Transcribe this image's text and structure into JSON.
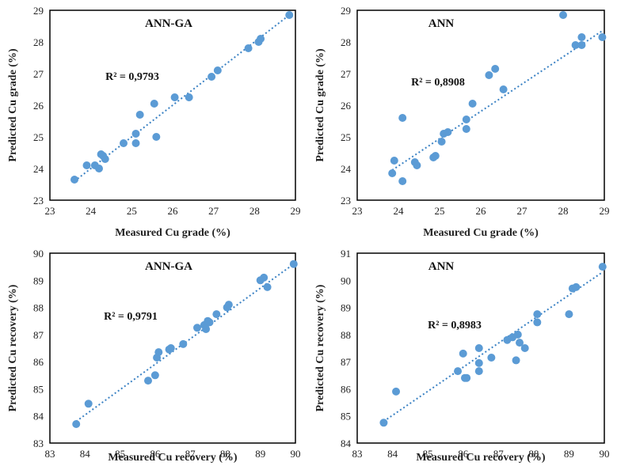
{
  "chart_data": [
    {
      "type": "scatter",
      "title": "ANN-GA",
      "annotation": "R² = 0,9793",
      "xlabel": "Measured Cu grade (%)",
      "ylabel": "Predicted Cu grade (%)",
      "xlim": [
        23,
        29
      ],
      "ylim": [
        23,
        29
      ],
      "xticks": [
        "23",
        "24",
        "25",
        "26",
        "27",
        "28",
        "29"
      ],
      "yticks": [
        "23",
        "24",
        "25",
        "26",
        "27",
        "28",
        "29"
      ],
      "trendline": [
        [
          23.6,
          23.6
        ],
        [
          28.9,
          28.9
        ]
      ],
      "marker_color": "#5b9bd5",
      "trend_color": "#3b82c4",
      "points": [
        [
          23.6,
          23.65
        ],
        [
          23.9,
          24.1
        ],
        [
          24.1,
          24.1
        ],
        [
          24.2,
          24.0
        ],
        [
          24.25,
          24.45
        ],
        [
          24.3,
          24.4
        ],
        [
          24.35,
          24.3
        ],
        [
          24.8,
          24.8
        ],
        [
          25.1,
          24.8
        ],
        [
          25.1,
          25.1
        ],
        [
          25.2,
          25.7
        ],
        [
          25.55,
          26.05
        ],
        [
          25.6,
          25.0
        ],
        [
          26.05,
          26.25
        ],
        [
          26.4,
          26.25
        ],
        [
          26.95,
          26.9
        ],
        [
          27.1,
          27.1
        ],
        [
          27.85,
          27.8
        ],
        [
          28.1,
          28.0
        ],
        [
          28.15,
          28.1
        ],
        [
          28.85,
          28.85
        ]
      ]
    },
    {
      "type": "scatter",
      "title": "ANN",
      "annotation": "R² = 0,8908",
      "xlabel": "Measured Cu grade (%)",
      "ylabel": "Predicted Cu grade (%)",
      "xlim": [
        23,
        29
      ],
      "ylim": [
        23,
        29
      ],
      "xticks": [
        "23",
        "24",
        "25",
        "26",
        "27",
        "28",
        "29"
      ],
      "yticks": [
        "23",
        "24",
        "25",
        "26",
        "27",
        "28",
        "29"
      ],
      "trendline": [
        [
          23.85,
          23.95
        ],
        [
          28.95,
          28.35
        ]
      ],
      "marker_color": "#5b9bd5",
      "trend_color": "#3b82c4",
      "points": [
        [
          23.85,
          23.85
        ],
        [
          23.9,
          24.25
        ],
        [
          24.1,
          23.6
        ],
        [
          24.1,
          25.6
        ],
        [
          24.4,
          24.2
        ],
        [
          24.45,
          24.1
        ],
        [
          24.85,
          24.35
        ],
        [
          24.9,
          24.4
        ],
        [
          25.05,
          24.85
        ],
        [
          25.1,
          25.1
        ],
        [
          25.2,
          25.15
        ],
        [
          25.65,
          25.25
        ],
        [
          25.65,
          25.55
        ],
        [
          25.8,
          26.05
        ],
        [
          26.2,
          26.95
        ],
        [
          26.35,
          27.15
        ],
        [
          26.55,
          26.5
        ],
        [
          28.0,
          28.85
        ],
        [
          28.3,
          27.9
        ],
        [
          28.45,
          27.9
        ],
        [
          28.45,
          28.15
        ],
        [
          28.95,
          28.15
        ]
      ]
    },
    {
      "type": "scatter",
      "title": "ANN-GA",
      "annotation": "R² = 0,9791",
      "xlabel": "Measured Cu recovery (%)",
      "ylabel": "Predicted Cu recovery (%)",
      "xlim": [
        83,
        90
      ],
      "ylim": [
        83,
        90
      ],
      "xticks": [
        "83",
        "84",
        "85",
        "86",
        "87",
        "88",
        "89",
        "90"
      ],
      "yticks": [
        "83",
        "84",
        "85",
        "86",
        "87",
        "88",
        "89",
        "90"
      ],
      "trendline": [
        [
          83.75,
          83.8
        ],
        [
          89.95,
          89.6
        ]
      ],
      "marker_color": "#5b9bd5",
      "trend_color": "#3b82c4",
      "points": [
        [
          83.75,
          83.7
        ],
        [
          84.1,
          84.45
        ],
        [
          85.8,
          85.3
        ],
        [
          86.0,
          85.5
        ],
        [
          86.05,
          86.15
        ],
        [
          86.1,
          86.35
        ],
        [
          86.4,
          86.45
        ],
        [
          86.45,
          86.5
        ],
        [
          86.8,
          86.65
        ],
        [
          87.2,
          87.25
        ],
        [
          87.4,
          87.35
        ],
        [
          87.45,
          87.2
        ],
        [
          87.5,
          87.5
        ],
        [
          87.55,
          87.45
        ],
        [
          87.75,
          87.75
        ],
        [
          88.05,
          88.0
        ],
        [
          88.1,
          88.1
        ],
        [
          89.0,
          89.0
        ],
        [
          89.1,
          89.1
        ],
        [
          89.2,
          88.75
        ],
        [
          89.95,
          89.6
        ]
      ]
    },
    {
      "type": "scatter",
      "title": "ANN",
      "annotation": "R² = 0,8983",
      "xlabel": "Measured Cu recovery (%)",
      "ylabel": "Predicted Cu recovery (%)",
      "xlim": [
        83,
        90
      ],
      "ylim": [
        84,
        91
      ],
      "xticks": [
        "83",
        "84",
        "85",
        "86",
        "87",
        "88",
        "89",
        "90"
      ],
      "yticks": [
        "84",
        "85",
        "86",
        "87",
        "88",
        "89",
        "90",
        "91"
      ],
      "trendline": [
        [
          83.75,
          84.8
        ],
        [
          89.95,
          90.3
        ]
      ],
      "marker_color": "#5b9bd5",
      "trend_color": "#3b82c4",
      "points": [
        [
          83.75,
          84.75
        ],
        [
          84.1,
          85.9
        ],
        [
          85.85,
          86.65
        ],
        [
          86.0,
          87.3
        ],
        [
          86.05,
          86.4
        ],
        [
          86.1,
          86.4
        ],
        [
          86.45,
          86.65
        ],
        [
          86.45,
          86.95
        ],
        [
          86.45,
          87.5
        ],
        [
          86.8,
          87.15
        ],
        [
          87.25,
          87.8
        ],
        [
          87.4,
          87.9
        ],
        [
          87.5,
          87.05
        ],
        [
          87.55,
          88.0
        ],
        [
          87.6,
          87.7
        ],
        [
          87.75,
          87.5
        ],
        [
          88.1,
          88.45
        ],
        [
          88.1,
          88.75
        ],
        [
          89.0,
          88.75
        ],
        [
          89.1,
          89.7
        ],
        [
          89.2,
          89.75
        ],
        [
          89.95,
          90.5
        ]
      ]
    }
  ]
}
